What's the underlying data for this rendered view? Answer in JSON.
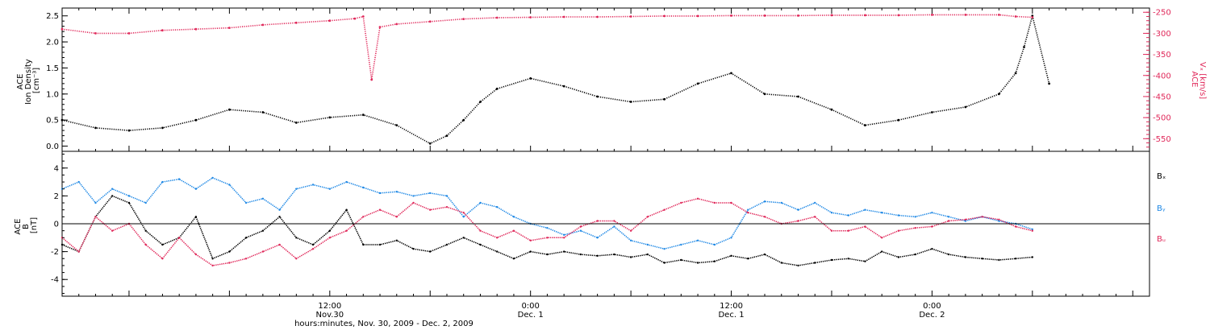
{
  "colors": {
    "black": "#000000",
    "red": "#e0285a",
    "blue": "#1e88e5"
  },
  "chart_data": [
    {
      "type": "scatter",
      "panel": "top",
      "ylabel_lines": [
        "ACE",
        "Ion Density",
        "[cm⁻³]"
      ],
      "y2label_lines": [
        "ACE",
        "Vₓ [km/s]"
      ],
      "ylim": [
        -0.1,
        2.65
      ],
      "yticks": [
        "0.0",
        "0.5",
        "1.0",
        "1.5",
        "2.0",
        "2.5"
      ],
      "y2lim": [
        -580,
        -240
      ],
      "y2ticks": [
        "-250",
        "-300",
        "-350",
        "-400",
        "-450",
        "-500",
        "-550"
      ],
      "series": [
        {
          "axis": "left",
          "color_key": "black",
          "x": [
            -4,
            -2,
            0,
            2,
            4,
            6,
            8,
            10,
            12,
            14,
            16,
            18,
            19,
            20,
            21,
            22,
            24,
            26,
            28,
            30,
            32,
            34,
            36,
            38,
            40,
            42,
            44,
            46,
            48,
            50,
            52,
            53,
            53.5,
            54,
            55
          ],
          "y": [
            0.5,
            0.35,
            0.3,
            0.35,
            0.5,
            0.7,
            0.65,
            0.45,
            0.55,
            0.6,
            0.4,
            0.05,
            0.2,
            0.5,
            0.85,
            1.1,
            1.3,
            1.15,
            0.95,
            0.85,
            0.9,
            1.2,
            1.4,
            1.0,
            0.95,
            0.7,
            0.4,
            0.5,
            0.65,
            0.75,
            1.0,
            1.4,
            1.9,
            2.5,
            1.2
          ]
        },
        {
          "axis": "right",
          "color_key": "red",
          "x": [
            -4,
            -2,
            0,
            2,
            4,
            6,
            8,
            10,
            12,
            13.5,
            14,
            14.5,
            15,
            16,
            18,
            20,
            22,
            24,
            26,
            28,
            30,
            32,
            34,
            36,
            38,
            40,
            42,
            44,
            46,
            48,
            50,
            52,
            53,
            54
          ],
          "y": [
            -290,
            -300,
            -300,
            -293,
            -290,
            -287,
            -280,
            -275,
            -270,
            -265,
            -260,
            -410,
            -285,
            -278,
            -272,
            -266,
            -263,
            -262,
            -261,
            -261,
            -260,
            -259,
            -259,
            -258,
            -258,
            -258,
            -257,
            -257,
            -257,
            -256,
            -256,
            -256,
            -260,
            -262
          ]
        }
      ]
    },
    {
      "type": "line",
      "panel": "bottom",
      "ylabel_lines": [
        "ACE",
        "B",
        "[nT]"
      ],
      "ylim": [
        -5.2,
        5.2
      ],
      "yticks": [
        "4",
        "2",
        "0",
        "-2",
        "-4"
      ],
      "legend": [
        "Bₓ",
        "Bᵧ",
        "Bᵤ"
      ],
      "series": [
        {
          "name": "Bx",
          "color_key": "black",
          "x": [
            -4,
            -3,
            -2,
            -1,
            0,
            1,
            2,
            3,
            4,
            5,
            6,
            7,
            8,
            9,
            10,
            11,
            12,
            13,
            14,
            15,
            16,
            17,
            18,
            19,
            20,
            21,
            22,
            23,
            24,
            25,
            26,
            27,
            28,
            29,
            30,
            31,
            32,
            33,
            34,
            35,
            36,
            37,
            38,
            39,
            40,
            41,
            42,
            43,
            44,
            45,
            46,
            47,
            48,
            49,
            50,
            51,
            52,
            53,
            54
          ],
          "y": [
            -1.5,
            -2.0,
            0.5,
            2.0,
            1.5,
            -0.5,
            -1.5,
            -1.0,
            0.5,
            -2.5,
            -2.0,
            -1.0,
            -0.5,
            0.5,
            -1.0,
            -1.5,
            -0.5,
            1.0,
            -1.5,
            -1.5,
            -1.2,
            -1.8,
            -2.0,
            -1.5,
            -1.0,
            -1.5,
            -2.0,
            -2.5,
            -2.0,
            -2.2,
            -2.0,
            -2.2,
            -2.3,
            -2.2,
            -2.4,
            -2.2,
            -2.8,
            -2.6,
            -2.8,
            -2.7,
            -2.3,
            -2.5,
            -2.2,
            -2.8,
            -3.0,
            -2.8,
            -2.6,
            -2.5,
            -2.7,
            -2.0,
            -2.4,
            -2.2,
            -1.8,
            -2.2,
            -2.4,
            -2.5,
            -2.6,
            -2.5,
            -2.4
          ]
        },
        {
          "name": "By",
          "color_key": "blue",
          "x": [
            -4,
            -3,
            -2,
            -1,
            0,
            1,
            2,
            3,
            4,
            5,
            6,
            7,
            8,
            9,
            10,
            11,
            12,
            13,
            14,
            15,
            16,
            17,
            18,
            19,
            20,
            21,
            22,
            23,
            24,
            25,
            26,
            27,
            28,
            29,
            30,
            31,
            32,
            33,
            34,
            35,
            36,
            37,
            38,
            39,
            40,
            41,
            42,
            43,
            44,
            45,
            46,
            47,
            48,
            49,
            50,
            51,
            52,
            53,
            54
          ],
          "y": [
            2.5,
            3.0,
            1.5,
            2.5,
            2.0,
            1.5,
            3.0,
            3.2,
            2.5,
            3.3,
            2.8,
            1.5,
            1.8,
            1.0,
            2.5,
            2.8,
            2.5,
            3.0,
            2.6,
            2.2,
            2.3,
            2.0,
            2.2,
            2.0,
            0.5,
            1.5,
            1.2,
            0.5,
            0.0,
            -0.3,
            -0.8,
            -0.5,
            -1.0,
            -0.2,
            -1.2,
            -1.5,
            -1.8,
            -1.5,
            -1.2,
            -1.5,
            -1.0,
            1.0,
            1.6,
            1.5,
            1.0,
            1.5,
            0.8,
            0.6,
            1.0,
            0.8,
            0.6,
            0.5,
            0.8,
            0.5,
            0.2,
            0.5,
            0.2,
            0.0,
            -0.4
          ]
        },
        {
          "name": "Bz",
          "color_key": "red",
          "x": [
            -4,
            -3,
            -2,
            -1,
            0,
            1,
            2,
            3,
            4,
            5,
            6,
            7,
            8,
            9,
            10,
            11,
            12,
            13,
            14,
            15,
            16,
            17,
            18,
            19,
            20,
            21,
            22,
            23,
            24,
            25,
            26,
            27,
            28,
            29,
            30,
            31,
            32,
            33,
            34,
            35,
            36,
            37,
            38,
            39,
            40,
            41,
            42,
            43,
            44,
            45,
            46,
            47,
            48,
            49,
            50,
            51,
            52,
            53,
            54
          ],
          "y": [
            -1.0,
            -2.0,
            0.5,
            -0.5,
            0.0,
            -1.5,
            -2.5,
            -1.0,
            -2.2,
            -3.0,
            -2.8,
            -2.5,
            -2.0,
            -1.5,
            -2.5,
            -1.8,
            -1.0,
            -0.5,
            0.5,
            1.0,
            0.5,
            1.5,
            1.0,
            1.2,
            0.8,
            -0.5,
            -1.0,
            -0.5,
            -1.2,
            -1.0,
            -1.0,
            -0.2,
            0.2,
            0.2,
            -0.5,
            0.5,
            1.0,
            1.5,
            1.8,
            1.5,
            1.5,
            0.8,
            0.5,
            0.0,
            0.2,
            0.5,
            -0.5,
            -0.5,
            -0.2,
            -1.0,
            -0.5,
            -0.3,
            -0.2,
            0.2,
            0.3,
            0.5,
            0.3,
            -0.2,
            -0.5
          ]
        }
      ]
    }
  ],
  "xaxis": {
    "range": [
      -4,
      61
    ],
    "label": "hours:minutes, Nov. 30, 2009 - Dec. 2, 2009",
    "ticks": [
      {
        "hour": 12,
        "time": "12:00",
        "date": "Nov.30"
      },
      {
        "hour": 24,
        "time": "0:00",
        "date": "Dec. 1"
      },
      {
        "hour": 36,
        "time": "12:00",
        "date": "Dec. 1"
      },
      {
        "hour": 48,
        "time": "0:00",
        "date": "Dec. 2"
      }
    ]
  }
}
